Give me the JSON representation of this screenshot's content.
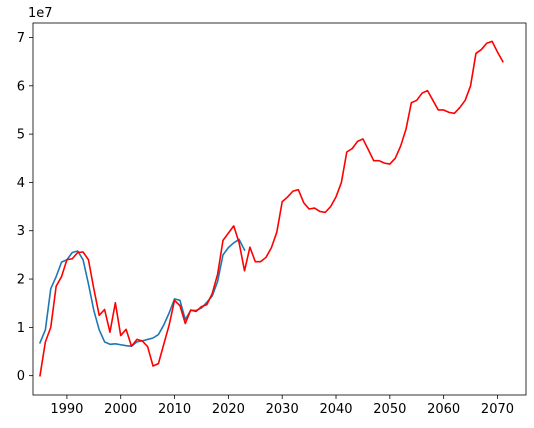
{
  "chart_data": {
    "type": "line",
    "title": "",
    "xlabel": "",
    "ylabel": "",
    "offset_label": "1e7",
    "xlim": [
      1983.7,
      2075.3
    ],
    "ylim": [
      -4000000,
      73000000
    ],
    "x_ticks": [
      1990,
      2000,
      2010,
      2020,
      2030,
      2040,
      2050,
      2060,
      2070
    ],
    "y_ticks": [
      0,
      10000000,
      20000000,
      30000000,
      40000000,
      50000000,
      60000000,
      70000000
    ],
    "y_tick_labels": [
      "0",
      "1",
      "2",
      "3",
      "4",
      "5",
      "6",
      "7"
    ],
    "grid": false,
    "series": [
      {
        "color": "#1f77b4",
        "x": [
          1985,
          1986,
          1987,
          1988,
          1989,
          1990,
          1991,
          1992,
          1993,
          1994,
          1995,
          1996,
          1997,
          1998,
          1999,
          2000,
          2001,
          2002,
          2003,
          2004,
          2005,
          2006,
          2007,
          2008,
          2009,
          2010,
          2011,
          2012,
          2013,
          2014,
          2015,
          2016,
          2017,
          2018,
          2019,
          2020,
          2021,
          2022,
          2023
        ],
        "y": [
          6800000,
          9500000,
          18000000,
          20500000,
          23500000,
          24000000,
          25500000,
          25800000,
          24000000,
          19000000,
          13500000,
          9500000,
          7000000,
          6500000,
          6600000,
          6400000,
          6200000,
          6100000,
          7000000,
          7200000,
          7500000,
          7800000,
          8500000,
          10500000,
          13000000,
          15900000,
          15600000,
          11600000,
          13500000,
          13500000,
          14000000,
          15200000,
          16500000,
          19500000,
          25000000,
          26500000,
          27500000,
          28200000,
          26000000
        ]
      },
      {
        "color": "#ff0000",
        "x": [
          1985,
          1986,
          1987,
          1988,
          1989,
          1990,
          1991,
          1992,
          1993,
          1994,
          1995,
          1996,
          1997,
          1998,
          1999,
          2000,
          2001,
          2002,
          2003,
          2004,
          2005,
          2006,
          2007,
          2008,
          2009,
          2010,
          2011,
          2012,
          2013,
          2014,
          2015,
          2016,
          2017,
          2018,
          2019,
          2020,
          2021,
          2022,
          2023,
          2024,
          2025,
          2026,
          2027,
          2028,
          2029,
          2030,
          2031,
          2032,
          2033,
          2034,
          2035,
          2036,
          2037,
          2038,
          2039,
          2040,
          2041,
          2042,
          2043,
          2044,
          2045,
          2046,
          2047,
          2048,
          2049,
          2050,
          2051,
          2052,
          2053,
          2054,
          2055,
          2056,
          2057,
          2058,
          2059,
          2060,
          2061,
          2062,
          2063,
          2064,
          2065,
          2066,
          2067,
          2068,
          2069,
          2070,
          2071
        ],
        "y": [
          0,
          7000000,
          10000000,
          18500000,
          20500000,
          24000000,
          24200000,
          25500000,
          25600000,
          24000000,
          18000000,
          12500000,
          13700000,
          9000000,
          15100000,
          8300000,
          9600000,
          6100000,
          7500000,
          7200000,
          6000000,
          2000000,
          2500000,
          6500000,
          10500000,
          15600000,
          14500000,
          10800000,
          13600000,
          13300000,
          14300000,
          14700000,
          17000000,
          21000000,
          28000000,
          29500000,
          31000000,
          27500000,
          21700000,
          26600000,
          23600000,
          23600000,
          24500000,
          26500000,
          29700000,
          36000000,
          37000000,
          38200000,
          38500000,
          35800000,
          34500000,
          34700000,
          34000000,
          33800000,
          35000000,
          37000000,
          40000000,
          46300000,
          47000000,
          48500000,
          49000000,
          46800000,
          44500000,
          44500000,
          44000000,
          43800000,
          45000000,
          47500000,
          51000000,
          56500000,
          57000000,
          58500000,
          59000000,
          57000000,
          55000000,
          55000000,
          54500000,
          54300000,
          55500000,
          57000000,
          60000000,
          66700000,
          67500000,
          68800000,
          69200000,
          67000000,
          65000000
        ]
      }
    ]
  }
}
